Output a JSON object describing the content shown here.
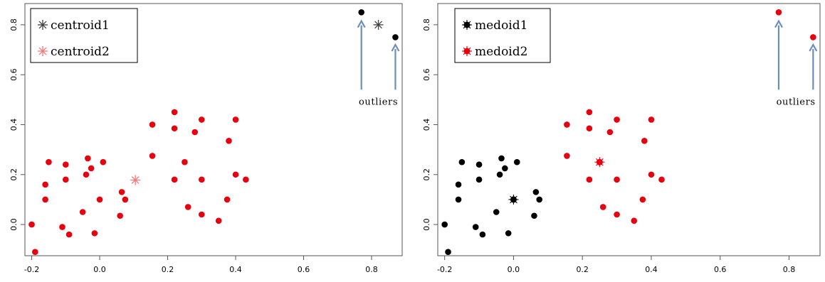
{
  "colors": {
    "red": "#e8000f",
    "black": "#000000",
    "centroid1": "#404040",
    "centroid2": "#f27a7a",
    "arrow": "#6c8ebf",
    "axis": "#555555"
  },
  "chart_data": [
    {
      "type": "scatter",
      "panel": "left",
      "xlim": [
        -0.22,
        0.89
      ],
      "ylim": [
        -0.125,
        0.885
      ],
      "xticks": [
        -0.2,
        0.0,
        0.2,
        0.4,
        0.6,
        0.8
      ],
      "xtick_labels": [
        "-0.2",
        "0.0",
        "0.2",
        "0.4",
        "0.6",
        "0.8"
      ],
      "yticks": [
        0.0,
        0.2,
        0.4,
        0.6,
        0.8
      ],
      "ytick_labels": [
        "0.0",
        "0.2",
        "0.4",
        "0.6",
        "0.8"
      ],
      "grid": false,
      "legend_position": "top-left",
      "legend": [
        {
          "label": "centroid1",
          "marker": "asterisk",
          "color": "#404040"
        },
        {
          "label": "centroid2",
          "marker": "asterisk",
          "color": "#f27a7a"
        }
      ],
      "series": [
        {
          "color": "red",
          "marker": "dot",
          "points": [
            [
              -0.2,
              0.0
            ],
            [
              -0.19,
              -0.11
            ],
            [
              -0.16,
              0.16
            ],
            [
              -0.16,
              0.1
            ],
            [
              -0.15,
              0.25
            ],
            [
              -0.11,
              -0.01
            ],
            [
              -0.1,
              0.24
            ],
            [
              -0.1,
              0.18
            ],
            [
              -0.09,
              -0.04
            ],
            [
              -0.05,
              0.05
            ],
            [
              -0.04,
              0.2
            ],
            [
              -0.035,
              0.265
            ],
            [
              -0.025,
              0.225
            ],
            [
              -0.015,
              -0.035
            ],
            [
              0.0,
              0.1
            ],
            [
              0.01,
              0.25
            ],
            [
              0.06,
              0.035
            ],
            [
              0.065,
              0.13
            ],
            [
              0.075,
              0.1
            ],
            [
              0.155,
              0.4
            ],
            [
              0.155,
              0.275
            ],
            [
              0.22,
              0.45
            ],
            [
              0.22,
              0.385
            ],
            [
              0.22,
              0.18
            ],
            [
              0.25,
              0.25
            ],
            [
              0.26,
              0.07
            ],
            [
              0.28,
              0.37
            ],
            [
              0.3,
              0.42
            ],
            [
              0.3,
              0.18
            ],
            [
              0.3,
              0.04
            ],
            [
              0.35,
              0.015
            ],
            [
              0.375,
              0.1
            ],
            [
              0.38,
              0.335
            ],
            [
              0.4,
              0.42
            ],
            [
              0.4,
              0.2
            ],
            [
              0.43,
              0.18
            ]
          ]
        },
        {
          "color": "black",
          "marker": "dot",
          "points": [
            [
              0.77,
              0.85
            ],
            [
              0.87,
              0.75
            ]
          ]
        }
      ],
      "centers": [
        {
          "name": "centroid1",
          "x": 0.82,
          "y": 0.8,
          "color": "#404040"
        },
        {
          "name": "centroid2",
          "x": 0.105,
          "y": 0.178,
          "color": "#f27a7a"
        }
      ],
      "arrows": [
        {
          "x": 0.77,
          "y_from": 0.54,
          "y_to": 0.815
        },
        {
          "x": 0.87,
          "y_from": 0.54,
          "y_to": 0.72
        }
      ],
      "annotation": {
        "text": "outliers",
        "x": 0.82,
        "y": 0.48
      }
    },
    {
      "type": "scatter",
      "panel": "right",
      "xlim": [
        -0.22,
        0.89
      ],
      "ylim": [
        -0.125,
        0.885
      ],
      "xticks": [
        -0.2,
        0.0,
        0.2,
        0.4,
        0.6,
        0.8
      ],
      "xtick_labels": [
        "-0.2",
        "0.0",
        "0.2",
        "0.4",
        "0.6",
        "0.8"
      ],
      "yticks": [
        0.0,
        0.2,
        0.4,
        0.6,
        0.8
      ],
      "ytick_labels": [
        "0.0",
        "0.2",
        "0.4",
        "0.6",
        "0.8"
      ],
      "grid": false,
      "legend_position": "top-left",
      "legend": [
        {
          "label": "medoid1",
          "marker": "starred-dot",
          "color": "#000000"
        },
        {
          "label": "medoid2",
          "marker": "starred-dot",
          "color": "#e8000f"
        }
      ],
      "series": [
        {
          "color": "black",
          "marker": "dot",
          "points": [
            [
              -0.2,
              0.0
            ],
            [
              -0.19,
              -0.11
            ],
            [
              -0.16,
              0.16
            ],
            [
              -0.16,
              0.1
            ],
            [
              -0.15,
              0.25
            ],
            [
              -0.11,
              -0.01
            ],
            [
              -0.1,
              0.24
            ],
            [
              -0.1,
              0.18
            ],
            [
              -0.09,
              -0.04
            ],
            [
              -0.05,
              0.05
            ],
            [
              -0.04,
              0.2
            ],
            [
              -0.035,
              0.265
            ],
            [
              -0.025,
              0.225
            ],
            [
              -0.015,
              -0.035
            ],
            [
              0.01,
              0.25
            ],
            [
              0.06,
              0.035
            ],
            [
              0.065,
              0.13
            ],
            [
              0.075,
              0.1
            ]
          ]
        },
        {
          "color": "red",
          "marker": "dot",
          "points": [
            [
              0.155,
              0.4
            ],
            [
              0.155,
              0.275
            ],
            [
              0.22,
              0.45
            ],
            [
              0.22,
              0.385
            ],
            [
              0.22,
              0.18
            ],
            [
              0.26,
              0.07
            ],
            [
              0.28,
              0.37
            ],
            [
              0.3,
              0.42
            ],
            [
              0.3,
              0.18
            ],
            [
              0.3,
              0.04
            ],
            [
              0.35,
              0.015
            ],
            [
              0.375,
              0.1
            ],
            [
              0.38,
              0.335
            ],
            [
              0.4,
              0.42
            ],
            [
              0.4,
              0.2
            ],
            [
              0.43,
              0.18
            ],
            [
              0.77,
              0.85
            ],
            [
              0.87,
              0.75
            ]
          ]
        }
      ],
      "centers": [
        {
          "name": "medoid1",
          "x": 0.0,
          "y": 0.1,
          "color": "#000000"
        },
        {
          "name": "medoid2",
          "x": 0.25,
          "y": 0.25,
          "color": "#e8000f"
        }
      ],
      "arrows": [
        {
          "x": 0.77,
          "y_from": 0.54,
          "y_to": 0.815
        },
        {
          "x": 0.87,
          "y_from": 0.54,
          "y_to": 0.72
        }
      ],
      "annotation": {
        "text": "outliers",
        "x": 0.82,
        "y": 0.48
      }
    }
  ]
}
